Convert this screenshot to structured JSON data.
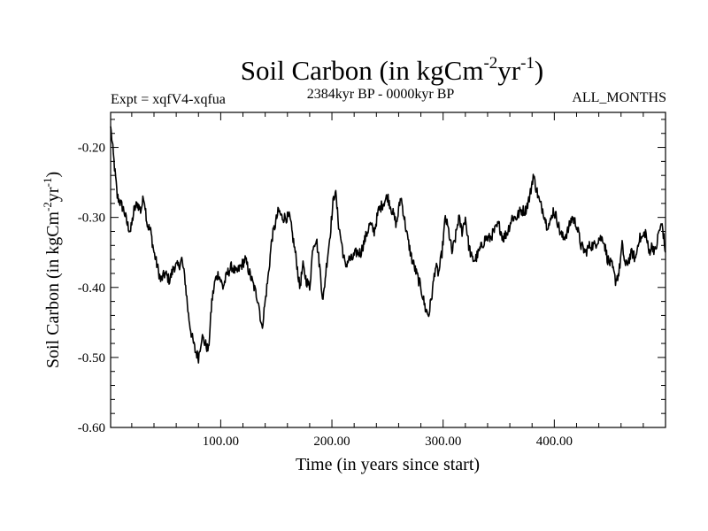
{
  "chart_data": {
    "type": "line",
    "title_main": "Soil Carbon (in kgCm",
    "title_sup1": "-2",
    "title_mid": "yr",
    "title_sup2": "-1",
    "title_close": ")",
    "subtitle_left": "Expt = xqfV4-xqfua",
    "subtitle_center": "2384kyr BP - 0000kyr BP",
    "subtitle_right": "ALL_MONTHS",
    "xlabel": "Time (in years since start)",
    "ylabel_main": "Soil Carbon (in kgCm",
    "ylabel_sup1": "-2",
    "ylabel_mid": "yr",
    "ylabel_sup2": "-1",
    "ylabel_close": ")",
    "xlim": [
      1,
      500
    ],
    "ylim": [
      -0.6,
      -0.15
    ],
    "x_major_ticks": [
      100,
      200,
      300,
      400
    ],
    "x_tick_labels": [
      "100.00",
      "200.00",
      "300.00",
      "400.00"
    ],
    "y_major_ticks": [
      -0.6,
      -0.5,
      -0.4,
      -0.3,
      -0.2
    ],
    "y_tick_labels": [
      "-0.60",
      "-0.50",
      "-0.40",
      "-0.30",
      "-0.20"
    ],
    "series": [
      {
        "name": "soil_carbon",
        "color": "#000000",
        "anchors": [
          [
            1,
            -0.17
          ],
          [
            4,
            -0.22
          ],
          [
            7,
            -0.27
          ],
          [
            10,
            -0.28
          ],
          [
            13,
            -0.29
          ],
          [
            16,
            -0.31
          ],
          [
            19,
            -0.32
          ],
          [
            22,
            -0.29
          ],
          [
            25,
            -0.28
          ],
          [
            28,
            -0.29
          ],
          [
            31,
            -0.27
          ],
          [
            34,
            -0.31
          ],
          [
            37,
            -0.32
          ],
          [
            40,
            -0.35
          ],
          [
            43,
            -0.37
          ],
          [
            46,
            -0.39
          ],
          [
            50,
            -0.38
          ],
          [
            54,
            -0.39
          ],
          [
            58,
            -0.37
          ],
          [
            62,
            -0.37
          ],
          [
            65,
            -0.36
          ],
          [
            68,
            -0.39
          ],
          [
            71,
            -0.44
          ],
          [
            74,
            -0.47
          ],
          [
            77,
            -0.49
          ],
          [
            80,
            -0.5
          ],
          [
            83,
            -0.47
          ],
          [
            86,
            -0.48
          ],
          [
            89,
            -0.49
          ],
          [
            92,
            -0.42
          ],
          [
            95,
            -0.39
          ],
          [
            98,
            -0.38
          ],
          [
            102,
            -0.4
          ],
          [
            106,
            -0.38
          ],
          [
            110,
            -0.37
          ],
          [
            114,
            -0.38
          ],
          [
            118,
            -0.37
          ],
          [
            122,
            -0.36
          ],
          [
            126,
            -0.38
          ],
          [
            130,
            -0.4
          ],
          [
            134,
            -0.42
          ],
          [
            137,
            -0.46
          ],
          [
            140,
            -0.42
          ],
          [
            143,
            -0.38
          ],
          [
            146,
            -0.33
          ],
          [
            149,
            -0.31
          ],
          [
            152,
            -0.29
          ],
          [
            155,
            -0.3
          ],
          [
            158,
            -0.3
          ],
          [
            162,
            -0.3
          ],
          [
            165,
            -0.33
          ],
          [
            168,
            -0.36
          ],
          [
            171,
            -0.4
          ],
          [
            174,
            -0.37
          ],
          [
            177,
            -0.39
          ],
          [
            180,
            -0.4
          ],
          [
            183,
            -0.34
          ],
          [
            186,
            -0.33
          ],
          [
            189,
            -0.37
          ],
          [
            192,
            -0.42
          ],
          [
            195,
            -0.37
          ],
          [
            198,
            -0.33
          ],
          [
            201,
            -0.28
          ],
          [
            203,
            -0.26
          ],
          [
            206,
            -0.31
          ],
          [
            209,
            -0.34
          ],
          [
            212,
            -0.37
          ],
          [
            215,
            -0.36
          ],
          [
            218,
            -0.36
          ],
          [
            222,
            -0.35
          ],
          [
            226,
            -0.35
          ],
          [
            230,
            -0.33
          ],
          [
            234,
            -0.31
          ],
          [
            238,
            -0.32
          ],
          [
            242,
            -0.29
          ],
          [
            246,
            -0.28
          ],
          [
            250,
            -0.27
          ],
          [
            254,
            -0.29
          ],
          [
            258,
            -0.31
          ],
          [
            262,
            -0.27
          ],
          [
            265,
            -0.3
          ],
          [
            268,
            -0.33
          ],
          [
            272,
            -0.36
          ],
          [
            276,
            -0.38
          ],
          [
            280,
            -0.4
          ],
          [
            284,
            -0.43
          ],
          [
            287,
            -0.44
          ],
          [
            290,
            -0.41
          ],
          [
            293,
            -0.37
          ],
          [
            296,
            -0.38
          ],
          [
            299,
            -0.35
          ],
          [
            302,
            -0.3
          ],
          [
            305,
            -0.32
          ],
          [
            308,
            -0.35
          ],
          [
            311,
            -0.33
          ],
          [
            314,
            -0.3
          ],
          [
            317,
            -0.32
          ],
          [
            320,
            -0.3
          ],
          [
            323,
            -0.34
          ],
          [
            326,
            -0.36
          ],
          [
            329,
            -0.36
          ],
          [
            332,
            -0.35
          ],
          [
            335,
            -0.34
          ],
          [
            338,
            -0.33
          ],
          [
            342,
            -0.33
          ],
          [
            346,
            -0.32
          ],
          [
            350,
            -0.31
          ],
          [
            354,
            -0.33
          ],
          [
            358,
            -0.32
          ],
          [
            362,
            -0.3
          ],
          [
            366,
            -0.3
          ],
          [
            370,
            -0.29
          ],
          [
            374,
            -0.29
          ],
          [
            378,
            -0.27
          ],
          [
            381,
            -0.24
          ],
          [
            384,
            -0.26
          ],
          [
            387,
            -0.28
          ],
          [
            390,
            -0.29
          ],
          [
            393,
            -0.31
          ],
          [
            396,
            -0.31
          ],
          [
            399,
            -0.29
          ],
          [
            402,
            -0.3
          ],
          [
            405,
            -0.32
          ],
          [
            408,
            -0.33
          ],
          [
            412,
            -0.32
          ],
          [
            416,
            -0.3
          ],
          [
            420,
            -0.31
          ],
          [
            424,
            -0.34
          ],
          [
            428,
            -0.35
          ],
          [
            432,
            -0.34
          ],
          [
            436,
            -0.34
          ],
          [
            440,
            -0.33
          ],
          [
            444,
            -0.33
          ],
          [
            448,
            -0.36
          ],
          [
            452,
            -0.37
          ],
          [
            455,
            -0.39
          ],
          [
            458,
            -0.38
          ],
          [
            461,
            -0.34
          ],
          [
            464,
            -0.37
          ],
          [
            467,
            -0.36
          ],
          [
            470,
            -0.35
          ],
          [
            473,
            -0.36
          ],
          [
            476,
            -0.33
          ],
          [
            479,
            -0.33
          ],
          [
            482,
            -0.32
          ],
          [
            485,
            -0.35
          ],
          [
            488,
            -0.34
          ],
          [
            491,
            -0.35
          ],
          [
            494,
            -0.32
          ],
          [
            497,
            -0.31
          ],
          [
            500,
            -0.35
          ]
        ]
      }
    ]
  }
}
